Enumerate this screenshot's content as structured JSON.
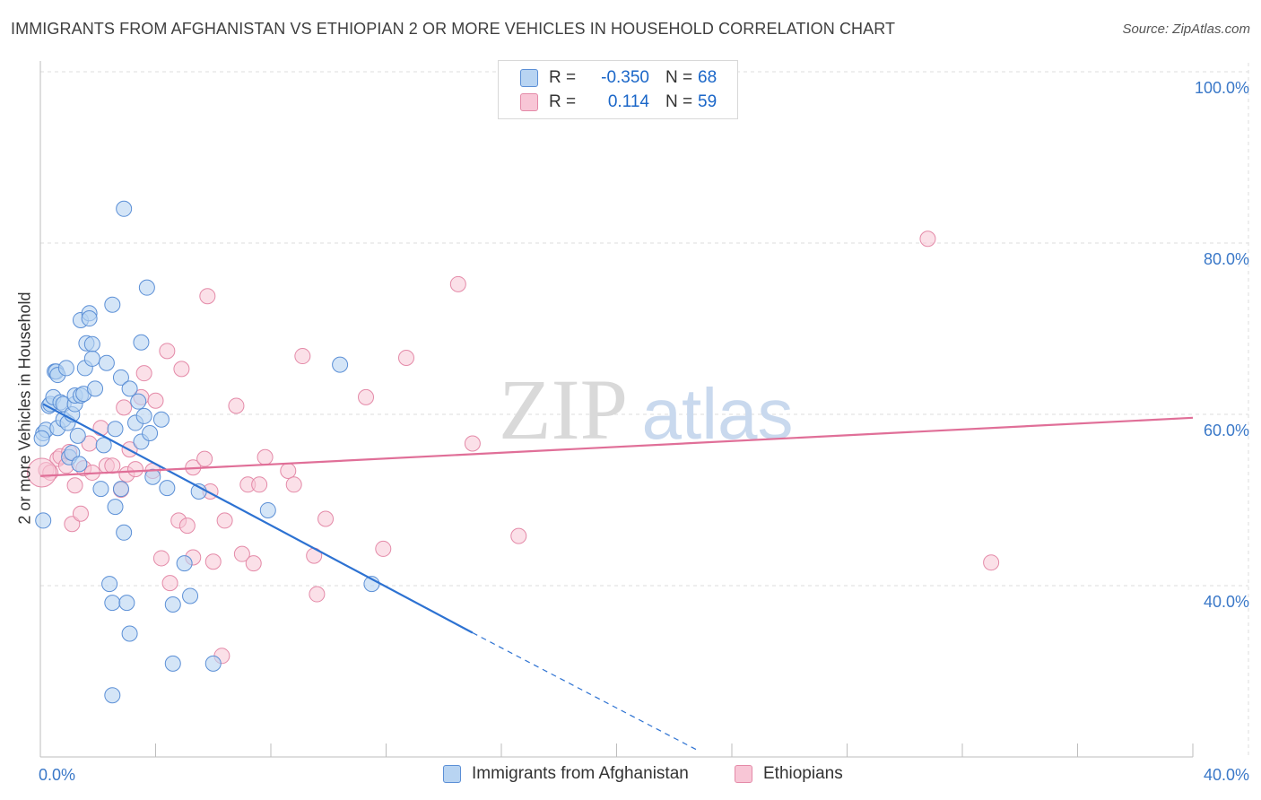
{
  "title": "IMMIGRANTS FROM AFGHANISTAN VS ETHIOPIAN 2 OR MORE VEHICLES IN HOUSEHOLD CORRELATION CHART",
  "source": "Source: ZipAtlas.com",
  "watermark": {
    "zip": "ZIP",
    "atlas": "atlas"
  },
  "legend": {
    "rows": [
      {
        "r_label": "R =",
        "r_value": "-0.350",
        "n_label": "N =",
        "n_value": "68"
      },
      {
        "r_label": "R =",
        "r_value": "0.114",
        "n_label": "N =",
        "n_value": "59"
      }
    ]
  },
  "bottom_legend": {
    "afghanistan": "Immigrants from Afghanistan",
    "ethiopians": "Ethiopians"
  },
  "colors": {
    "blue_fill": "#b8d4f2",
    "blue_stroke": "#5b8fd6",
    "blue_line": "#2d72d2",
    "pink_fill": "#f8c6d6",
    "pink_stroke": "#e48aa8",
    "pink_line": "#e06f98",
    "axis_text": "#3a78c8",
    "grid": "#dddddd"
  },
  "chart_data": {
    "type": "scatter",
    "title": "IMMIGRANTS FROM AFGHANISTAN VS ETHIOPIAN 2 OR MORE VEHICLES IN HOUSEHOLD CORRELATION CHART",
    "xlabel": "",
    "ylabel": "2 or more Vehicles in Household",
    "xlim": [
      0,
      40
    ],
    "ylim": [
      20,
      100
    ],
    "x_tick_labels": [
      {
        "value": 0,
        "label": "0.0%"
      },
      {
        "value": 40,
        "label": "40.0%"
      }
    ],
    "y_tick_labels": [
      {
        "value": 100,
        "label": "100.0%"
      },
      {
        "value": 80,
        "label": "80.0%"
      },
      {
        "value": 60,
        "label": "60.0%"
      },
      {
        "value": 40,
        "label": "40.0%"
      }
    ],
    "grid": true,
    "series": [
      {
        "name": "Immigrants from Afghanistan",
        "color": "blue",
        "trend": {
          "x_start": 0.1,
          "y_start": 61.2,
          "x_solid_end": 15.0,
          "y_solid_end": 34.5,
          "x_dash_end": 22.8,
          "y_dash_end": 20.8
        },
        "points": [
          [
            0.1,
            47.6
          ],
          [
            0.1,
            57.8
          ],
          [
            0.2,
            58.2
          ],
          [
            0.3,
            61.0
          ],
          [
            0.35,
            61.2
          ],
          [
            0.45,
            62.0
          ],
          [
            0.5,
            65.0
          ],
          [
            0.55,
            65.0
          ],
          [
            0.6,
            64.6
          ],
          [
            0.6,
            58.4
          ],
          [
            0.7,
            61.4
          ],
          [
            0.8,
            59.4
          ],
          [
            0.8,
            61.2
          ],
          [
            0.9,
            65.4
          ],
          [
            0.95,
            59.0
          ],
          [
            1.0,
            55.0
          ],
          [
            1.1,
            55.5
          ],
          [
            1.1,
            60.0
          ],
          [
            1.2,
            61.2
          ],
          [
            1.2,
            62.2
          ],
          [
            1.3,
            57.5
          ],
          [
            1.35,
            54.2
          ],
          [
            1.4,
            62.2
          ],
          [
            1.5,
            62.4
          ],
          [
            1.55,
            65.4
          ],
          [
            1.6,
            68.3
          ],
          [
            1.4,
            71.0
          ],
          [
            1.7,
            71.8
          ],
          [
            1.7,
            71.2
          ],
          [
            1.8,
            68.2
          ],
          [
            1.8,
            66.5
          ],
          [
            1.9,
            63.0
          ],
          [
            2.1,
            51.3
          ],
          [
            2.2,
            56.4
          ],
          [
            2.3,
            66.0
          ],
          [
            2.4,
            40.2
          ],
          [
            2.5,
            27.2
          ],
          [
            2.5,
            38.0
          ],
          [
            2.6,
            49.2
          ],
          [
            2.6,
            58.3
          ],
          [
            2.5,
            72.8
          ],
          [
            2.8,
            64.3
          ],
          [
            2.8,
            51.3
          ],
          [
            2.9,
            84.0
          ],
          [
            2.9,
            46.2
          ],
          [
            3.0,
            38.0
          ],
          [
            3.1,
            63.0
          ],
          [
            3.1,
            34.4
          ],
          [
            3.3,
            59.0
          ],
          [
            3.4,
            61.5
          ],
          [
            3.5,
            68.4
          ],
          [
            3.5,
            56.8
          ],
          [
            3.6,
            59.8
          ],
          [
            3.7,
            74.8
          ],
          [
            3.8,
            57.8
          ],
          [
            3.9,
            52.7
          ],
          [
            4.2,
            59.4
          ],
          [
            4.4,
            51.4
          ],
          [
            4.6,
            30.9
          ],
          [
            4.6,
            37.8
          ],
          [
            5.0,
            42.6
          ],
          [
            5.2,
            38.8
          ],
          [
            5.5,
            51.0
          ],
          [
            6.0,
            30.9
          ],
          [
            7.9,
            48.8
          ],
          [
            10.4,
            65.8
          ],
          [
            11.5,
            40.2
          ],
          [
            0.05,
            57.2
          ]
        ]
      },
      {
        "name": "Ethiopians",
        "color": "pink",
        "trend": {
          "x_start": 0.0,
          "y_start": 52.8,
          "x_end": 40.0,
          "y_end": 59.6
        },
        "points": [
          [
            0.2,
            53.5
          ],
          [
            0.35,
            53.2
          ],
          [
            0.6,
            54.8
          ],
          [
            0.7,
            55.1
          ],
          [
            0.9,
            54.0
          ],
          [
            1.0,
            55.6
          ],
          [
            1.1,
            47.2
          ],
          [
            1.2,
            51.7
          ],
          [
            1.4,
            48.4
          ],
          [
            1.5,
            53.7
          ],
          [
            1.7,
            56.6
          ],
          [
            1.8,
            53.2
          ],
          [
            2.1,
            58.4
          ],
          [
            2.3,
            54.0
          ],
          [
            2.5,
            54.0
          ],
          [
            2.8,
            51.2
          ],
          [
            2.9,
            60.8
          ],
          [
            3.0,
            53.0
          ],
          [
            3.1,
            55.9
          ],
          [
            3.3,
            53.6
          ],
          [
            3.5,
            62.0
          ],
          [
            3.6,
            64.8
          ],
          [
            3.9,
            53.4
          ],
          [
            4.0,
            61.6
          ],
          [
            4.2,
            43.2
          ],
          [
            4.4,
            67.4
          ],
          [
            4.5,
            40.3
          ],
          [
            4.8,
            47.6
          ],
          [
            4.9,
            65.3
          ],
          [
            5.1,
            47.0
          ],
          [
            5.3,
            43.3
          ],
          [
            5.3,
            53.8
          ],
          [
            5.7,
            54.8
          ],
          [
            5.8,
            73.8
          ],
          [
            5.9,
            51.0
          ],
          [
            6.0,
            42.8
          ],
          [
            6.3,
            31.8
          ],
          [
            6.4,
            47.6
          ],
          [
            6.8,
            61.0
          ],
          [
            7.0,
            43.7
          ],
          [
            7.2,
            51.8
          ],
          [
            7.4,
            42.6
          ],
          [
            7.6,
            51.8
          ],
          [
            7.8,
            55.0
          ],
          [
            8.6,
            53.4
          ],
          [
            8.8,
            51.8
          ],
          [
            9.1,
            66.8
          ],
          [
            9.5,
            43.5
          ],
          [
            9.6,
            39.0
          ],
          [
            9.9,
            47.8
          ],
          [
            11.3,
            62.0
          ],
          [
            11.9,
            44.3
          ],
          [
            12.7,
            66.6
          ],
          [
            14.5,
            75.2
          ],
          [
            15.0,
            56.6
          ],
          [
            16.6,
            45.8
          ],
          [
            30.8,
            80.5
          ],
          [
            33.0,
            42.7
          ],
          [
            0.05,
            53.2
          ]
        ]
      }
    ]
  }
}
